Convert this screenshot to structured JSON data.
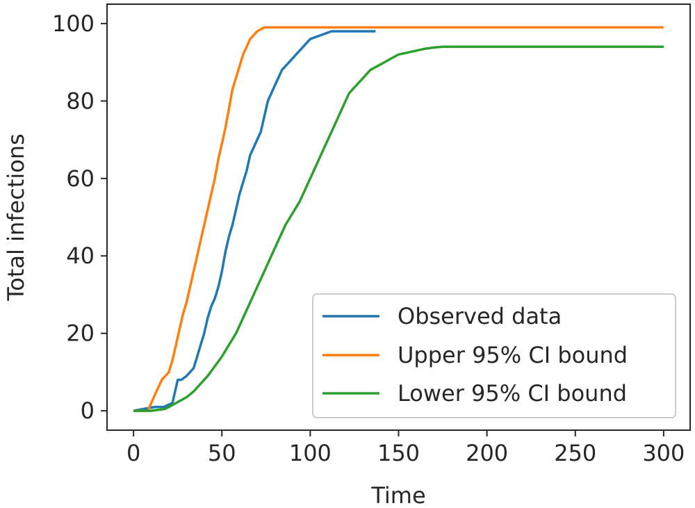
{
  "chart_data": {
    "type": "line",
    "title": "",
    "xlabel": "Time",
    "ylabel": "Total infections",
    "xlim": [
      -15,
      315
    ],
    "ylim": [
      -5,
      105
    ],
    "xticks": [
      0,
      50,
      100,
      150,
      200,
      250,
      300
    ],
    "yticks": [
      0,
      20,
      40,
      60,
      80,
      100
    ],
    "grid": false,
    "legend_position": "lower-right",
    "series": [
      {
        "name": "Observed data",
        "color": "#1f77b4",
        "x": [
          0,
          12,
          17,
          22,
          25,
          27,
          30,
          34,
          36,
          38,
          40,
          42,
          44,
          46,
          48,
          50,
          52,
          54,
          56,
          58,
          60,
          62,
          64,
          66,
          68,
          70,
          72,
          74,
          76,
          78,
          80,
          82,
          84,
          86,
          88,
          90,
          92,
          94,
          96,
          98,
          100,
          103,
          106,
          109,
          112,
          115,
          120,
          125,
          130,
          137
        ],
        "y": [
          0,
          1,
          1,
          2,
          8,
          8,
          9,
          11,
          14,
          17,
          20,
          24,
          27,
          29,
          32,
          36,
          41,
          45,
          48,
          52,
          56,
          59,
          62,
          66,
          68,
          70,
          72,
          76,
          80,
          82,
          84,
          86,
          88,
          89,
          90,
          91,
          92,
          93,
          94,
          95,
          96,
          96.5,
          97,
          97.5,
          98,
          98,
          98,
          98,
          98,
          98
        ]
      },
      {
        "name": "Upper 95% CI bound",
        "color": "#ff7f0e",
        "x": [
          0,
          8,
          10,
          12,
          14,
          16,
          18,
          20,
          22,
          24,
          26,
          28,
          30,
          32,
          34,
          36,
          38,
          40,
          42,
          44,
          46,
          48,
          50,
          52,
          54,
          56,
          58,
          60,
          62,
          64,
          66,
          68,
          70,
          72,
          74,
          76,
          78,
          80,
          90,
          100,
          150,
          200,
          250,
          300
        ],
        "y": [
          0,
          0,
          2,
          4,
          6,
          8,
          9,
          10,
          13,
          17,
          21,
          25,
          28,
          32,
          36,
          40,
          44,
          48,
          52,
          56,
          60,
          65,
          69,
          73,
          78,
          83,
          86,
          89,
          92,
          94,
          96,
          97,
          98,
          98.5,
          99,
          99,
          99,
          99,
          99,
          99,
          99,
          99,
          99,
          99
        ]
      },
      {
        "name": "Lower 95% CI bound",
        "color": "#2ca02c",
        "x": [
          0,
          10,
          18,
          22,
          26,
          30,
          34,
          38,
          42,
          46,
          50,
          54,
          58,
          62,
          66,
          70,
          74,
          78,
          82,
          86,
          90,
          94,
          98,
          102,
          106,
          110,
          114,
          118,
          122,
          126,
          130,
          134,
          138,
          142,
          146,
          150,
          155,
          160,
          165,
          170,
          175,
          180,
          200,
          250,
          300
        ],
        "y": [
          0,
          0,
          0.5,
          1.5,
          2.5,
          3.5,
          5,
          7,
          9,
          11.5,
          14,
          17,
          20,
          24,
          28,
          32,
          36,
          40,
          44,
          48,
          51,
          54,
          58,
          62,
          66,
          70,
          74,
          78,
          82,
          84,
          86,
          88,
          89,
          90,
          91,
          92,
          92.5,
          93,
          93.5,
          93.8,
          94,
          94,
          94,
          94,
          94
        ]
      }
    ]
  }
}
